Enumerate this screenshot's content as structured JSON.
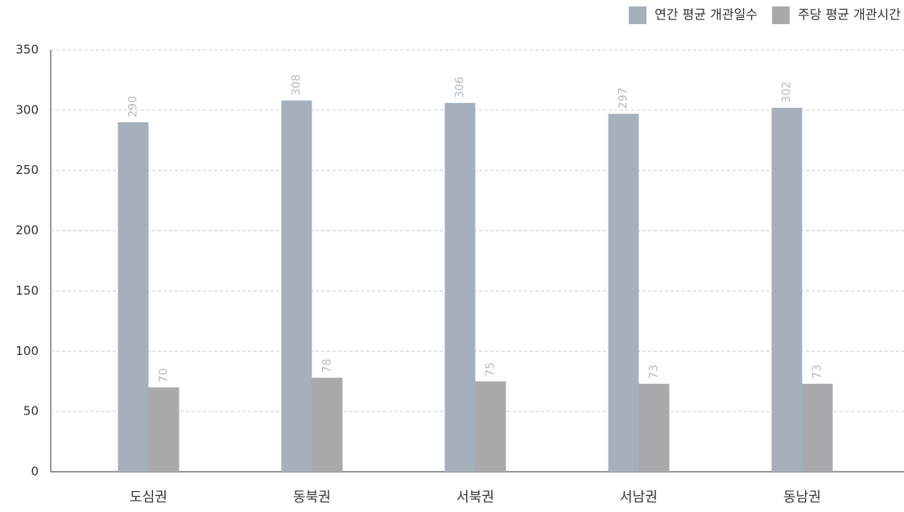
{
  "chart_data": {
    "type": "bar",
    "categories": [
      "도심권",
      "동북권",
      "서북권",
      "서남권",
      "동남권"
    ],
    "series": [
      {
        "name": "연간 평균 개관일수",
        "color": "#a5b0bc",
        "values": [
          290,
          308,
          306,
          297,
          302
        ]
      },
      {
        "name": "주당 평균 개관시간",
        "color": "#a9a9ac",
        "values": [
          70,
          78,
          75,
          73,
          73
        ]
      }
    ],
    "ylim": [
      0,
      350
    ],
    "yticks": [
      0,
      50,
      100,
      150,
      200,
      250,
      300,
      350
    ],
    "grid": true,
    "legend": "top-right"
  }
}
